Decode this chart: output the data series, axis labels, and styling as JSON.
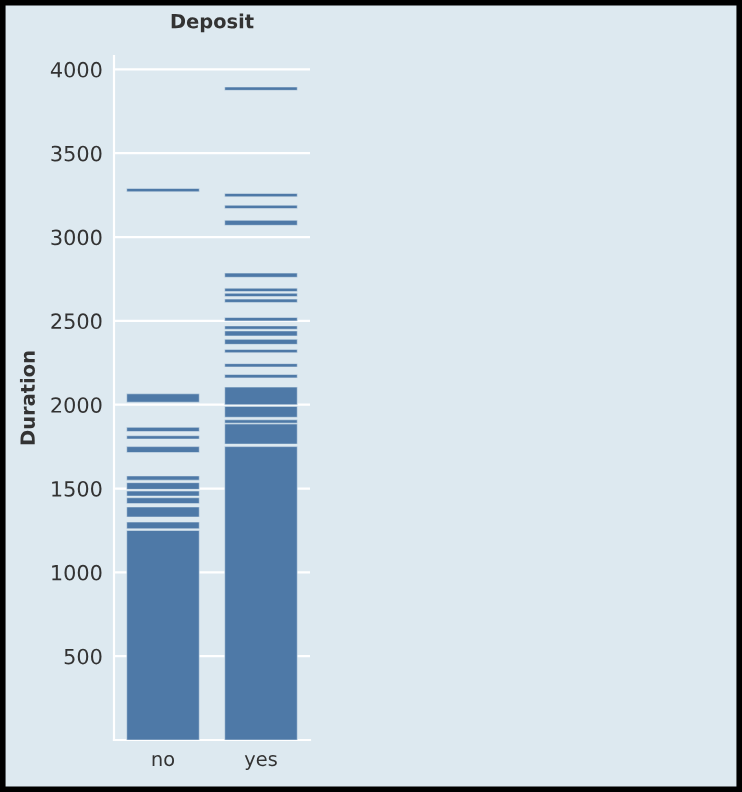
{
  "chart_data": {
    "type": "bar",
    "title": "Deposit",
    "ylabel": "Duration",
    "categories": [
      "no",
      "yes"
    ],
    "ylim": [
      0,
      4080
    ],
    "yticks": [
      500,
      1000,
      1500,
      2000,
      2500,
      3000,
      3500,
      4000
    ],
    "grid": "y",
    "series": [
      {
        "color": "#4e79a7",
        "base": [
          0,
          0
        ],
        "values": [
          1250,
          1750
        ]
      },
      {
        "color": "#4e79a7",
        "base": [
          1260,
          1765
        ],
        "values": [
          40,
          120
        ]
      },
      {
        "color": "#4e79a7",
        "base": [
          1330,
          1890
        ],
        "values": [
          60,
          20
        ]
      },
      {
        "color": "#4e79a7",
        "base": [
          1410,
          1925
        ],
        "values": [
          35,
          65
        ]
      },
      {
        "color": "#4e79a7",
        "base": [
          1455,
          2000
        ],
        "values": [
          30,
          105
        ]
      },
      {
        "color": "#4e79a7",
        "base": [
          1495,
          2160
        ],
        "values": [
          40,
          20
        ]
      },
      {
        "color": "#4e79a7",
        "base": [
          1550,
          2225
        ],
        "values": [
          25,
          20
        ]
      },
      {
        "color": "#4e79a7",
        "base": [
          1715,
          2310
        ],
        "values": [
          35,
          20
        ]
      },
      {
        "color": "#4e79a7",
        "base": [
          1795,
          2360
        ],
        "values": [
          20,
          30
        ]
      },
      {
        "color": "#4e79a7",
        "base": [
          1840,
          2410
        ],
        "values": [
          25,
          30
        ]
      },
      {
        "color": "#4e79a7",
        "base": [
          2015,
          2450
        ],
        "values": [
          50,
          20
        ]
      },
      {
        "color": "#4e79a7",
        "base": [
          3270,
          2500
        ],
        "values": [
          20,
          20
        ]
      },
      {
        "color": "#4e79a7",
        "base": [
          null,
          2610
        ],
        "values": [
          null,
          20
        ]
      },
      {
        "color": "#4e79a7",
        "base": [
          null,
          2645
        ],
        "values": [
          null,
          20
        ]
      },
      {
        "color": "#4e79a7",
        "base": [
          null,
          2675
        ],
        "values": [
          null,
          20
        ]
      },
      {
        "color": "#4e79a7",
        "base": [
          null,
          2760
        ],
        "values": [
          null,
          25
        ]
      },
      {
        "color": "#4e79a7",
        "base": [
          null,
          3070
        ],
        "values": [
          null,
          30
        ]
      },
      {
        "color": "#4e79a7",
        "base": [
          null,
          3170
        ],
        "values": [
          null,
          20
        ]
      },
      {
        "color": "#4e79a7",
        "base": [
          null,
          3240
        ],
        "values": [
          null,
          20
        ]
      },
      {
        "color": "#4e79a7",
        "base": [
          null,
          3875
        ],
        "values": [
          null,
          20
        ]
      }
    ]
  }
}
